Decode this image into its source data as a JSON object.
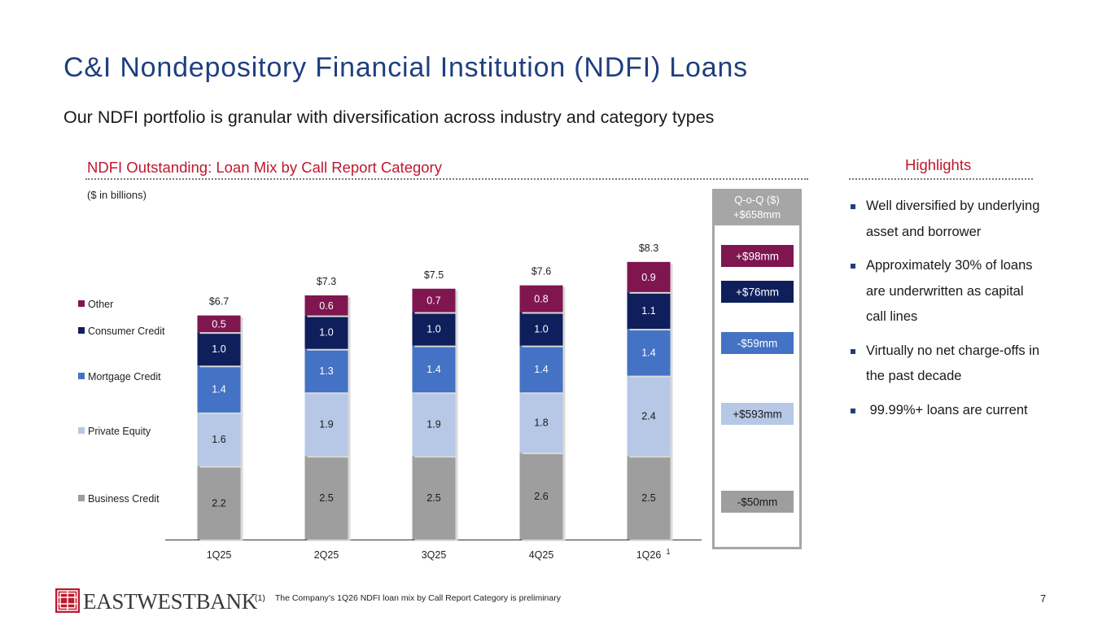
{
  "page": {
    "title": "C&I Nondepository Financial Institution (NDFI) Loans",
    "subtitle": "Our NDFI portfolio is granular with diversification across industry and category types",
    "page_number": "7"
  },
  "chart_section": {
    "heading": "NDFI Outstanding: Loan Mix by Call Report Category",
    "units": "($ in billions)"
  },
  "chart_data": {
    "type": "bar",
    "stacked": true,
    "categories": [
      "1Q25",
      "2Q25",
      "3Q25",
      "4Q25",
      "1Q26"
    ],
    "category_superscripts": [
      "",
      "",
      "",
      "",
      "1"
    ],
    "series": [
      {
        "name": "Business Credit",
        "color": "#9e9e9e",
        "values": [
          2.2,
          2.5,
          2.5,
          2.6,
          2.5
        ]
      },
      {
        "name": "Private Equity",
        "color": "#b6c8e6",
        "values": [
          1.6,
          1.9,
          1.9,
          1.8,
          2.4
        ]
      },
      {
        "name": "Mortgage Credit",
        "color": "#4472c4",
        "values": [
          1.4,
          1.3,
          1.4,
          1.4,
          1.4
        ]
      },
      {
        "name": "Consumer Credit",
        "color": "#0f1f5c",
        "values": [
          1.0,
          1.0,
          1.0,
          1.0,
          1.1
        ]
      },
      {
        "name": "Other",
        "color": "#7f1650",
        "values": [
          0.5,
          0.6,
          0.7,
          0.8,
          0.9
        ]
      }
    ],
    "totals": [
      "$6.7",
      "$7.3",
      "$7.5",
      "$7.6",
      "$8.3"
    ],
    "value_labels": [
      [
        "2.2",
        "2.5",
        "2.5",
        "2.6",
        "2.5"
      ],
      [
        "1.6",
        "1.9",
        "1.9",
        "1.8",
        "2.4"
      ],
      [
        "1.4",
        "1.3",
        "1.4",
        "1.4",
        "1.4"
      ],
      [
        "1.0",
        "1.0",
        "1.0",
        "1.0",
        "1.1"
      ],
      [
        "0.5",
        "0.6",
        "0.7",
        "0.8",
        "0.9"
      ]
    ],
    "legend_position": "left",
    "grid": false,
    "qoq": {
      "header_line1": "Q-o-Q ($)",
      "header_line2": "+$658mm",
      "items": [
        {
          "series": "Other",
          "label": "+$98mm",
          "color": "#7f1650",
          "text_color": "#ffffff"
        },
        {
          "series": "Consumer Credit",
          "label": "+$76mm",
          "color": "#0f1f5c",
          "text_color": "#ffffff"
        },
        {
          "series": "Mortgage Credit",
          "label": "-$59mm",
          "color": "#4472c4",
          "text_color": "#ffffff"
        },
        {
          "series": "Private Equity",
          "label": "+$593mm",
          "color": "#b6c8e6",
          "text_color": "#1a1a1a"
        },
        {
          "series": "Business Credit",
          "label": "-$50mm",
          "color": "#9e9e9e",
          "text_color": "#1a1a1a"
        }
      ]
    }
  },
  "highlights": {
    "heading": "Highlights",
    "items": [
      "Well diversified by underlying asset and borrower",
      "Approximately 30% of loans are underwritten as capital call lines",
      "Virtually no net charge-offs in the past decade",
      " 99.99%+ loans are current"
    ]
  },
  "footnote": {
    "number": "(1)",
    "text": "The Company’s 1Q26 NDFI loan mix by Call Report Category is preliminary"
  },
  "logo": {
    "text": "EASTWESTBANK",
    "color": "#c0172d"
  }
}
